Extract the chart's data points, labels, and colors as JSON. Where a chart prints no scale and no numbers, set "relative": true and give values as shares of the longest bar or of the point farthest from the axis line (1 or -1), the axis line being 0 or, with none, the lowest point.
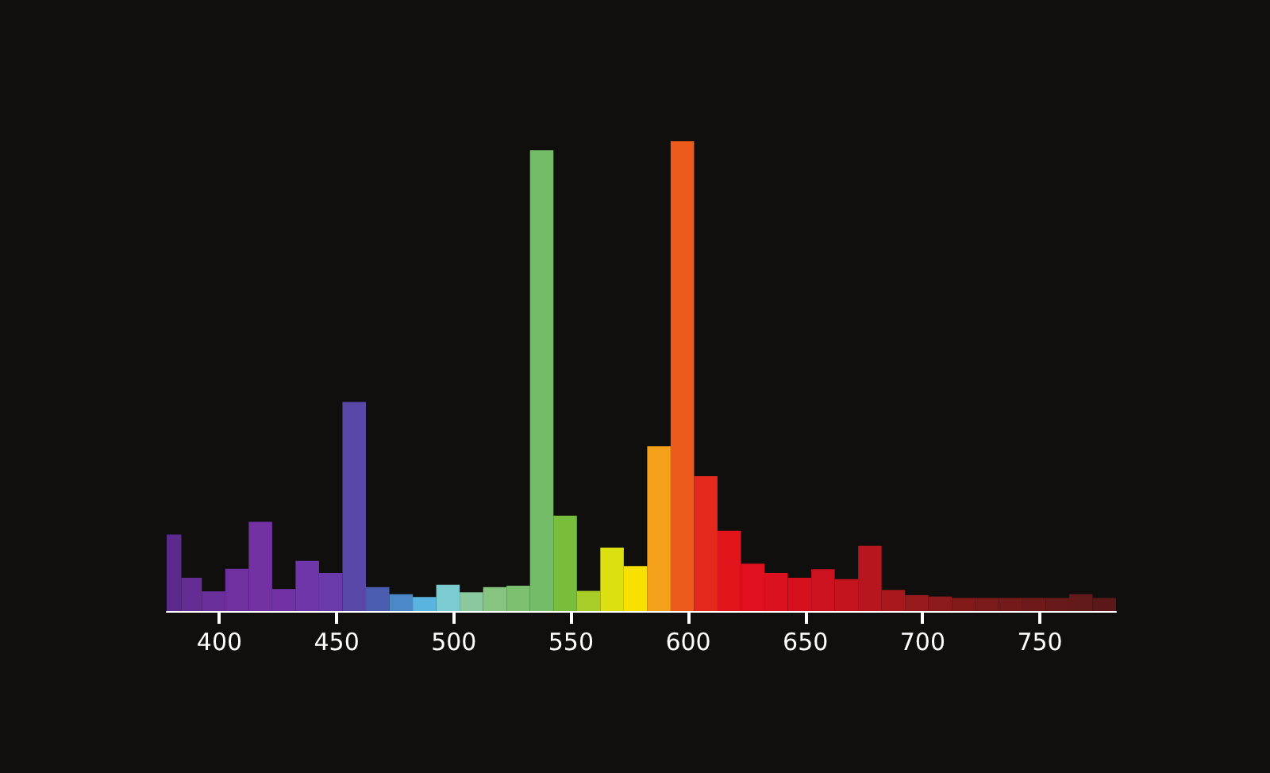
{
  "chart_data": {
    "type": "bar",
    "relative": true,
    "x": [
      380,
      387.5,
      397.5,
      407.5,
      417.5,
      427.5,
      437.5,
      447.5,
      457.5,
      467.5,
      477.5,
      487.5,
      497.5,
      507.5,
      517.5,
      527.5,
      537.5,
      547.5,
      557.5,
      567.5,
      577.5,
      587.5,
      597.5,
      607.5,
      617.5,
      627.5,
      637.5,
      647.5,
      657.5,
      667.5,
      677.5,
      687.5,
      697.5,
      707.5,
      717.5,
      727.5,
      737.5,
      747.5,
      757.5,
      767.5,
      777.5
    ],
    "values": [
      0.163,
      0.071,
      0.042,
      0.09,
      0.19,
      0.047,
      0.107,
      0.081,
      0.445,
      0.051,
      0.036,
      0.03,
      0.056,
      0.04,
      0.051,
      0.054,
      0.981,
      0.203,
      0.043,
      0.135,
      0.096,
      0.351,
      1,
      0.287,
      0.171,
      0.101,
      0.081,
      0.071,
      0.089,
      0.068,
      0.139,
      0.045,
      0.034,
      0.031,
      0.028,
      0.028,
      0.028,
      0.028,
      0.028,
      0.036,
      0.028
    ],
    "colors": [
      "#5c2a8c",
      "#632d94",
      "#6a2f9a",
      "#70309f",
      "#7331a4",
      "#7232a6",
      "#6e36a8",
      "#6a3aaa",
      "#5a48a8",
      "#4a5db0",
      "#4a88c8",
      "#5ab4e0",
      "#7ccbd0",
      "#8ac8a0",
      "#86c480",
      "#7cc070",
      "#74bc68",
      "#78bd3c",
      "#a8cc28",
      "#dde010",
      "#f8e000",
      "#f5a01a",
      "#ee5a1c",
      "#e5281c",
      "#e2141c",
      "#e0101e",
      "#dc101e",
      "#d6101e",
      "#cc121e",
      "#c4141e",
      "#b8161e",
      "#a8181c",
      "#981a1c",
      "#8c1a1c",
      "#821a1a",
      "#7a1a1a",
      "#741a1a",
      "#6e1a1a",
      "#681a1a",
      "#621a1a",
      "#5c1818"
    ],
    "xlim": [
      377.5,
      782.5
    ],
    "xticks": [
      400,
      450,
      500,
      550,
      600,
      650,
      700,
      750
    ]
  }
}
